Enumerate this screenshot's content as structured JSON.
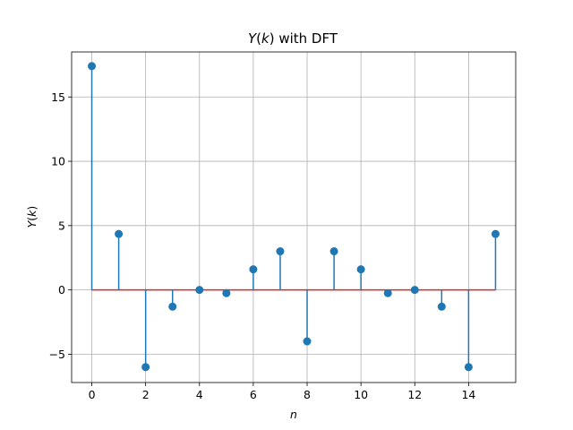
{
  "chart_data": {
    "type": "stem",
    "title": {
      "var": "Y",
      "arg": "k",
      "rest": " with DFT"
    },
    "xlabel": "n",
    "ylabel": {
      "var": "Y",
      "arg": "k"
    },
    "x": [
      0,
      1,
      2,
      3,
      4,
      5,
      6,
      7,
      8,
      9,
      10,
      11,
      12,
      13,
      14,
      15
    ],
    "values": [
      17.4,
      4.35,
      -6.0,
      -1.3,
      0.0,
      -0.25,
      1.6,
      3.0,
      -4.0,
      3.0,
      1.6,
      -0.25,
      0.0,
      -1.3,
      -6.0,
      4.35
    ],
    "xlim": [
      -0.75,
      15.75
    ],
    "ylim": [
      -7.2,
      18.5
    ],
    "xticks": [
      0,
      2,
      4,
      6,
      8,
      10,
      12,
      14
    ],
    "yticks": [
      -5,
      0,
      5,
      10,
      15
    ],
    "ytick_labels": [
      "−5",
      "0",
      "5",
      "10",
      "15"
    ],
    "grid": true,
    "colors": {
      "stem": "#1f77b4",
      "baseline": "#d62728",
      "grid": "#b0b0b0"
    }
  }
}
